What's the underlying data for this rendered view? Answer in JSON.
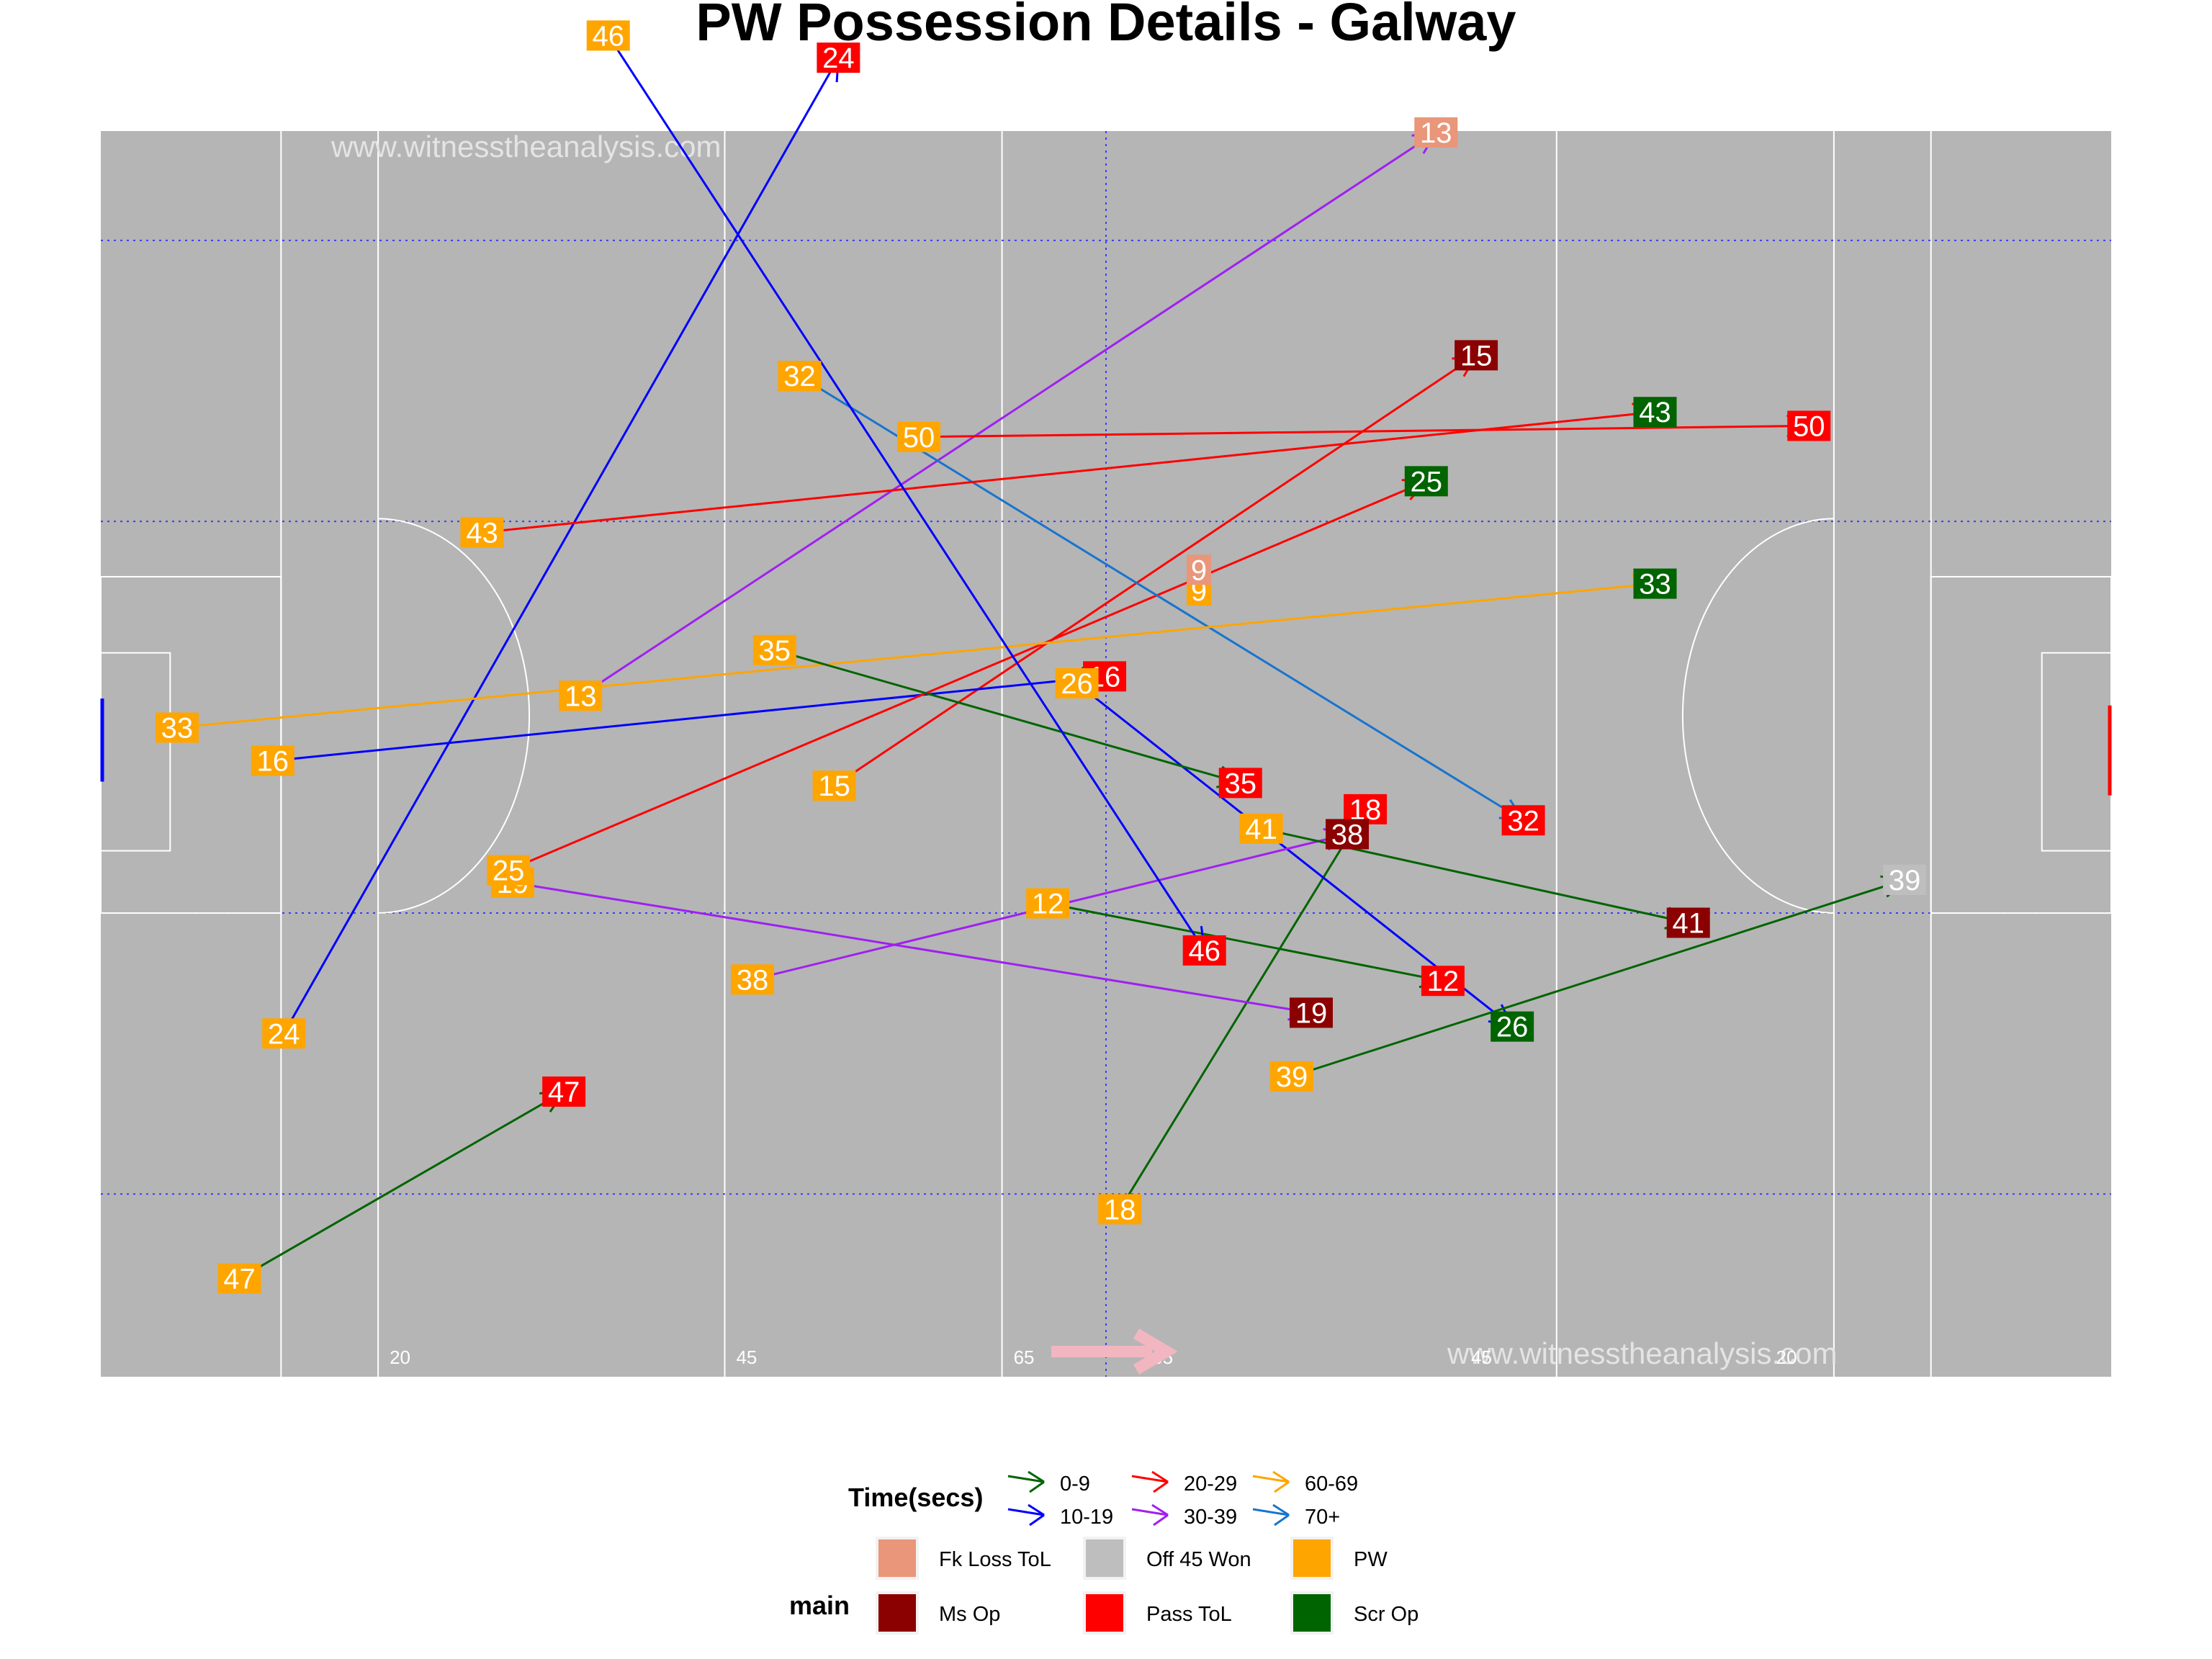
{
  "chart_data": {
    "type": "scatter",
    "title": "PW Possession Details - Galway",
    "watermark_top": "www.witnesstheanalysis.com",
    "watermark_bottom": "www.witnesstheanalysis.com",
    "pitch_markings": [
      "20",
      "45",
      "65",
      "65",
      "45",
      "20"
    ],
    "legend_time": {
      "title": "Time(secs)",
      "items": [
        {
          "label": "0-9",
          "color": "#006400"
        },
        {
          "label": "10-19",
          "color": "#0000ff"
        },
        {
          "label": "20-29",
          "color": "#ff0000"
        },
        {
          "label": "30-39",
          "color": "#a020f0"
        },
        {
          "label": "60-69",
          "color": "#ffa500"
        },
        {
          "label": "70+",
          "color": "#1874cd"
        }
      ]
    },
    "legend_main": {
      "title": "main",
      "items": [
        {
          "label": "Fk Loss ToL",
          "color": "#e9967a"
        },
        {
          "label": "Ms Op",
          "color": "#8b0000"
        },
        {
          "label": "Off 45 Won",
          "color": "#bebebe"
        },
        {
          "label": "Pass ToL",
          "color": "#ff0000"
        },
        {
          "label": "PW",
          "color": "#ffa500"
        },
        {
          "label": "Scr Op",
          "color": "#006400"
        }
      ]
    },
    "possessions": [
      {
        "id": "9",
        "start": [
          74.2,
          56.8
        ],
        "end": [
          74.2,
          58.3
        ],
        "time": "0-9",
        "outcome": "Fk Loss ToL"
      },
      {
        "id": "12",
        "start": [
          63.3,
          34.2
        ],
        "end": [
          91.8,
          28.6
        ],
        "time": "0-9",
        "outcome": "Pass ToL"
      },
      {
        "id": "13",
        "start": [
          29.6,
          49.2
        ],
        "end": [
          91.3,
          89.9
        ],
        "time": "30-39",
        "outcome": "Fk Loss ToL"
      },
      {
        "id": "15",
        "start": [
          47.9,
          42.7
        ],
        "end": [
          94.2,
          73.8
        ],
        "time": "20-29",
        "outcome": "Ms Op"
      },
      {
        "id": "16",
        "start": [
          7.4,
          44.5
        ],
        "end": [
          67.4,
          50.6
        ],
        "time": "10-19",
        "outcome": "Pass ToL"
      },
      {
        "id": "18",
        "start": [
          68.5,
          12.1
        ],
        "end": [
          86.2,
          41.0
        ],
        "time": "0-9",
        "outcome": "Pass ToL"
      },
      {
        "id": "19",
        "start": [
          24.7,
          35.7
        ],
        "end": [
          82.3,
          26.3
        ],
        "time": "30-39",
        "outcome": "Ms Op"
      },
      {
        "id": "24",
        "start": [
          8.2,
          24.8
        ],
        "end": [
          48.2,
          95.3
        ],
        "time": "10-19",
        "outcome": "Pass ToL"
      },
      {
        "id": "25",
        "start": [
          24.4,
          36.6
        ],
        "end": [
          90.6,
          64.7
        ],
        "time": "20-29",
        "outcome": "Scr Op"
      },
      {
        "id": "26",
        "start": [
          65.4,
          50.1
        ],
        "end": [
          96.8,
          25.3
        ],
        "time": "10-19",
        "outcome": "Scr Op"
      },
      {
        "id": "32",
        "start": [
          45.4,
          72.3
        ],
        "end": [
          97.6,
          40.2
        ],
        "time": "70+",
        "outcome": "Pass ToL"
      },
      {
        "id": "33",
        "start": [
          0.5,
          46.9
        ],
        "end": [
          107.1,
          57.3
        ],
        "time": "60-69",
        "outcome": "Scr Op"
      },
      {
        "id": "35",
        "start": [
          43.6,
          52.5
        ],
        "end": [
          77.2,
          42.9
        ],
        "time": "0-9",
        "outcome": "Pass ToL"
      },
      {
        "id": "38",
        "start": [
          42.0,
          28.7
        ],
        "end": [
          84.9,
          39.2
        ],
        "time": "30-39",
        "outcome": "Ms Op"
      },
      {
        "id": "39",
        "start": [
          80.9,
          21.7
        ],
        "end": [
          125.1,
          35.9
        ],
        "time": "0-9",
        "outcome": "Off 45 Won"
      },
      {
        "id": "41",
        "start": [
          78.7,
          39.6
        ],
        "end": [
          109.5,
          32.8
        ],
        "time": "0-9",
        "outcome": "Ms Op"
      },
      {
        "id": "43",
        "start": [
          22.5,
          61.0
        ],
        "end": [
          107.1,
          69.7
        ],
        "time": "20-29",
        "outcome": "Scr Op"
      },
      {
        "id": "46",
        "start": [
          31.6,
          96.9
        ],
        "end": [
          74.6,
          30.8
        ],
        "time": "10-19",
        "outcome": "Pass ToL"
      },
      {
        "id": "47",
        "start": [
          5.0,
          7.1
        ],
        "end": [
          28.4,
          20.6
        ],
        "time": "0-9",
        "outcome": "Pass ToL"
      },
      {
        "id": "50",
        "start": [
          54.0,
          67.9
        ],
        "end": [
          118.2,
          68.7
        ],
        "time": "20-29",
        "outcome": "Pass ToL"
      }
    ],
    "xlim": [
      -5,
      140
    ],
    "ylim": [
      0,
      90
    ]
  }
}
